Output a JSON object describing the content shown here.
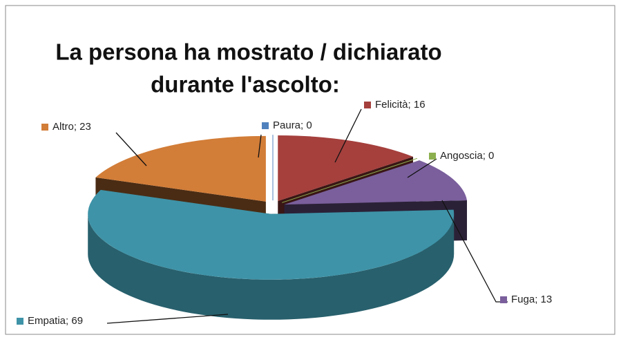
{
  "chart_data": {
    "type": "pie3d",
    "title": [
      "La persona ha mostrato / dichiarato",
      "durante l'ascolto:"
    ],
    "values": [
      0,
      16,
      0,
      13,
      69,
      23
    ],
    "value_labels": [
      "Paura; 0",
      "Felicità; 16",
      "Angoscia; 0",
      "Fuga; 13",
      "Empatia; 69",
      "Altro; 23"
    ],
    "colors": [
      "#4f81bd",
      "#a5403d",
      "#8db04f",
      "#7a5f9c",
      "#3e93a8",
      "#d27d38"
    ]
  }
}
